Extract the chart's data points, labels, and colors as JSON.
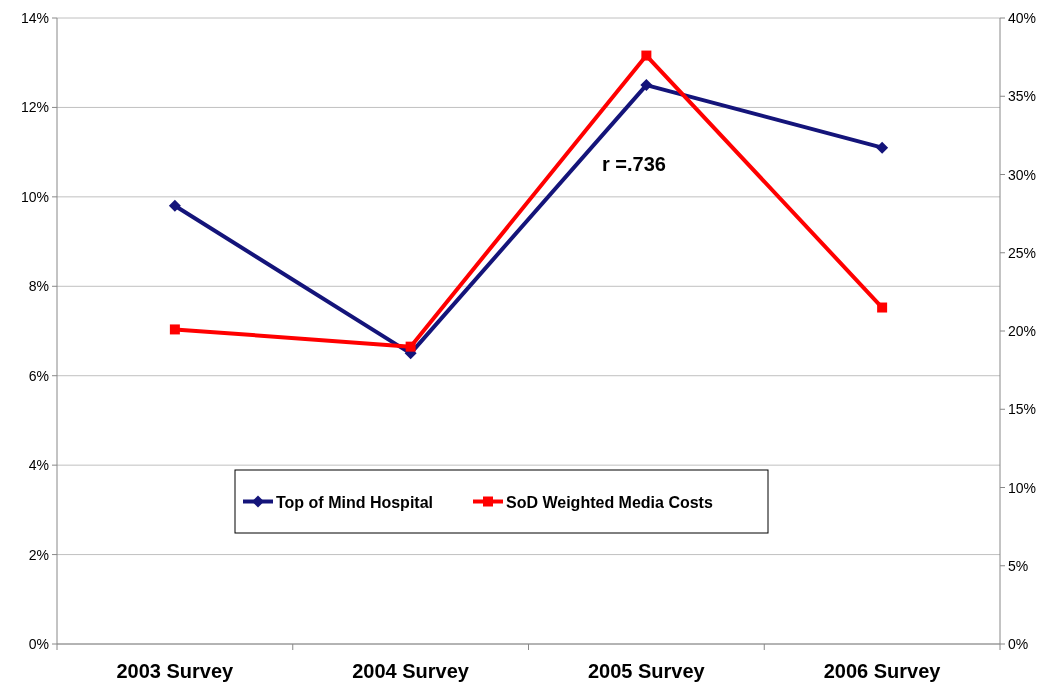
{
  "chart_data": {
    "type": "line",
    "categories": [
      "2003 Survey",
      "2004 Survey",
      "2005 Survey",
      "2006 Survey"
    ],
    "series": [
      {
        "name": "Top of Mind Hospital",
        "color": "#14147a",
        "values": [
          9.8,
          6.5,
          12.5,
          11.1
        ],
        "marker": "diamond"
      },
      {
        "name": "SoD Weighted Media Costs",
        "color": "#ff0000",
        "values": [
          20.1,
          19,
          37.6,
          21.5
        ],
        "marker": "square",
        "axis": "y2"
      }
    ],
    "ylim": [
      0,
      14
    ],
    "yticks": [
      {
        "value": 0,
        "label": "0%"
      },
      {
        "value": 2,
        "label": "2%"
      },
      {
        "value": 4,
        "label": "4%"
      },
      {
        "value": 6,
        "label": "6%"
      },
      {
        "value": 8,
        "label": "8%"
      },
      {
        "value": 10,
        "label": "10%"
      },
      {
        "value": 12,
        "label": "12%"
      },
      {
        "value": 14,
        "label": "14%"
      }
    ],
    "y2lim": [
      0,
      40
    ],
    "y2ticks": [
      {
        "value": 0,
        "label": "0%"
      },
      {
        "value": 5,
        "label": "5%"
      },
      {
        "value": 10,
        "label": "10%"
      },
      {
        "value": 15,
        "label": "15%"
      },
      {
        "value": 20,
        "label": "20%"
      },
      {
        "value": 25,
        "label": "25%"
      },
      {
        "value": 30,
        "label": "30%"
      },
      {
        "value": 35,
        "label": "35%"
      },
      {
        "value": 40,
        "label": "40%"
      }
    ],
    "grid": "y",
    "legend": "bottom",
    "annotations": [
      "r =.736"
    ]
  }
}
